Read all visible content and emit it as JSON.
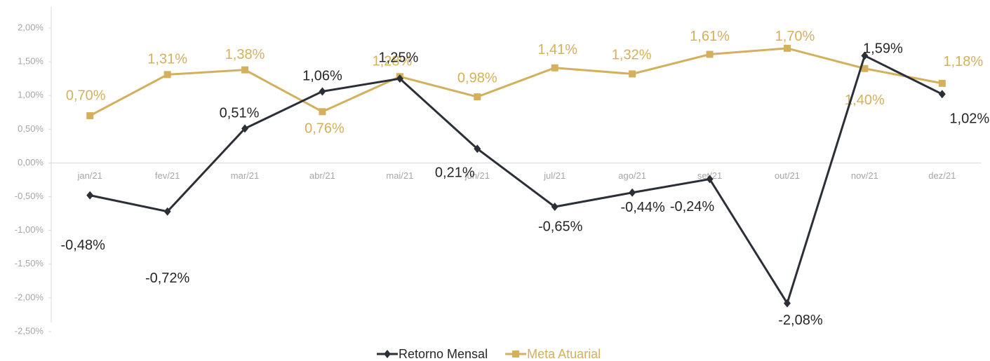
{
  "chart_data": {
    "type": "line",
    "categories": [
      "jan/21",
      "fev/21",
      "mar/21",
      "abr/21",
      "mai/21",
      "jun/21",
      "jul/21",
      "ago/21",
      "set/21",
      "out/21",
      "nov/21",
      "dez/21"
    ],
    "series": [
      {
        "name": "Retorno Mensal",
        "color": "#2b2f38",
        "marker": "diamond",
        "values": [
          -0.48,
          -0.72,
          0.51,
          1.06,
          1.25,
          0.21,
          -0.65,
          -0.44,
          -0.24,
          -2.08,
          1.59,
          1.02
        ],
        "value_labels": [
          "-0,48%",
          "-0,72%",
          "0,51%",
          "1,06%",
          "1,25%",
          "0,21%",
          "-0,65%",
          "-0,44%",
          "-0,24%",
          "-2,08%",
          "1,59%",
          "1,02%"
        ]
      },
      {
        "name": "Meta Atuarial",
        "color": "#d4b05c",
        "marker": "square",
        "values": [
          0.7,
          1.31,
          1.38,
          0.76,
          1.28,
          0.98,
          1.41,
          1.32,
          1.61,
          1.7,
          1.4,
          1.18
        ],
        "value_labels": [
          "0,70%",
          "1,31%",
          "1,38%",
          "0,76%",
          "1,28%",
          "0,98%",
          "1,41%",
          "1,32%",
          "1,61%",
          "1,70%",
          "1,40%",
          "1,18%"
        ]
      }
    ],
    "ylim": [
      -2.5,
      2.0
    ],
    "yticks": [
      {
        "value": -2.5,
        "label": "-2,50%"
      },
      {
        "value": -2.0,
        "label": "-2,00%"
      },
      {
        "value": -1.5,
        "label": "-1,50%"
      },
      {
        "value": -1.0,
        "label": "-1,00%"
      },
      {
        "value": -0.5,
        "label": "-0,50%"
      },
      {
        "value": 0,
        "label": "0,00%"
      },
      {
        "value": 0.5,
        "label": "0,50%"
      },
      {
        "value": 1.0,
        "label": "1,00%"
      },
      {
        "value": 1.5,
        "label": "1,50%"
      },
      {
        "value": 2.0,
        "label": "2,00%"
      }
    ],
    "legend": "bottom"
  }
}
